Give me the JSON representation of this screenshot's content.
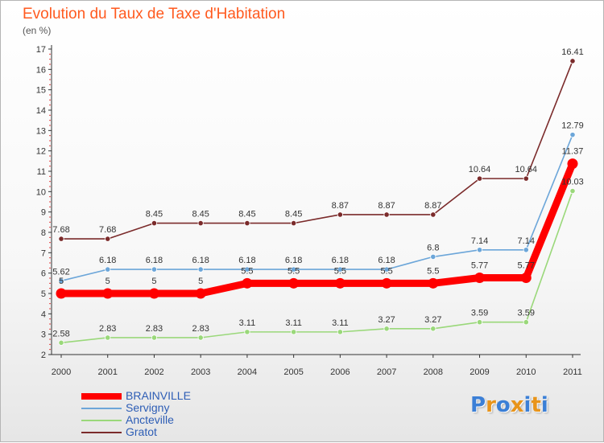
{
  "header": {
    "title": "Evolution du Taux de Taxe d'Habitation",
    "unit": "(en %)"
  },
  "logo": {
    "letters": [
      "P",
      "r",
      "o",
      "x",
      "i",
      "t",
      "i"
    ],
    "colors": [
      "#3b7fd6",
      "#e8941a",
      "#3b7fd6",
      "#e8941a",
      "#3b7fd6",
      "#e8941a",
      "#3b7fd6"
    ]
  },
  "chart_data": {
    "type": "line",
    "title": "Evolution du Taux de Taxe d'Habitation",
    "ylabel": "(en %)",
    "xlabel": "",
    "ylim": [
      2,
      17
    ],
    "yticks": [
      2,
      3,
      4,
      5,
      6,
      7,
      8,
      9,
      10,
      11,
      12,
      13,
      14,
      15,
      16,
      17
    ],
    "ytick_labels": [
      "2",
      "3",
      "4",
      "5",
      "6",
      "7",
      "8",
      "9",
      "10",
      "11",
      "12",
      "13",
      "14",
      "15",
      "16",
      "17"
    ],
    "grid": false,
    "legend_position": "bottom-left",
    "categories": [
      "2000",
      "2001",
      "2002",
      "2003",
      "2004",
      "2005",
      "2006",
      "2007",
      "2008",
      "2009",
      "2010",
      "2011"
    ],
    "series": [
      {
        "name": "BRAINVILLE",
        "color": "#ff0000",
        "values": [
          5,
          5,
          5,
          5,
          5.5,
          5.5,
          5.5,
          5.5,
          5.5,
          5.77,
          5.77,
          11.37
        ],
        "labels": [
          "5",
          "5",
          "5",
          "5",
          "5.5",
          "5.5",
          "5.5",
          "5.5",
          "5.5",
          "5.77",
          "5.77",
          "11.37"
        ]
      },
      {
        "name": "Servigny",
        "color": "#6ca6d9",
        "values": [
          5.62,
          6.18,
          6.18,
          6.18,
          6.18,
          6.18,
          6.18,
          6.18,
          6.8,
          7.14,
          7.14,
          12.79
        ],
        "labels": [
          "5.62",
          "6.18",
          "6.18",
          "6.18",
          "6.18",
          "6.18",
          "6.18",
          "6.18",
          "6.8",
          "7.14",
          "7.14",
          "12.79"
        ]
      },
      {
        "name": "Ancteville",
        "color": "#9ad87a",
        "values": [
          2.58,
          2.83,
          2.83,
          2.83,
          3.11,
          3.11,
          3.11,
          3.27,
          3.27,
          3.59,
          3.59,
          10.03
        ],
        "labels": [
          "2.58",
          "2.83",
          "2.83",
          "2.83",
          "3.11",
          "3.11",
          "3.11",
          "3.27",
          "3.27",
          "3.59",
          "3.59",
          "10.03"
        ]
      },
      {
        "name": "Gratot",
        "color": "#7b2b2b",
        "values": [
          7.68,
          7.68,
          8.45,
          8.45,
          8.45,
          8.45,
          8.87,
          8.87,
          8.87,
          10.64,
          10.64,
          16.41
        ],
        "labels": [
          "7.68",
          "7.68",
          "8.45",
          "8.45",
          "8.45",
          "8.45",
          "8.87",
          "8.87",
          "8.87",
          "10.64",
          "10.64",
          "16.41"
        ]
      }
    ]
  }
}
